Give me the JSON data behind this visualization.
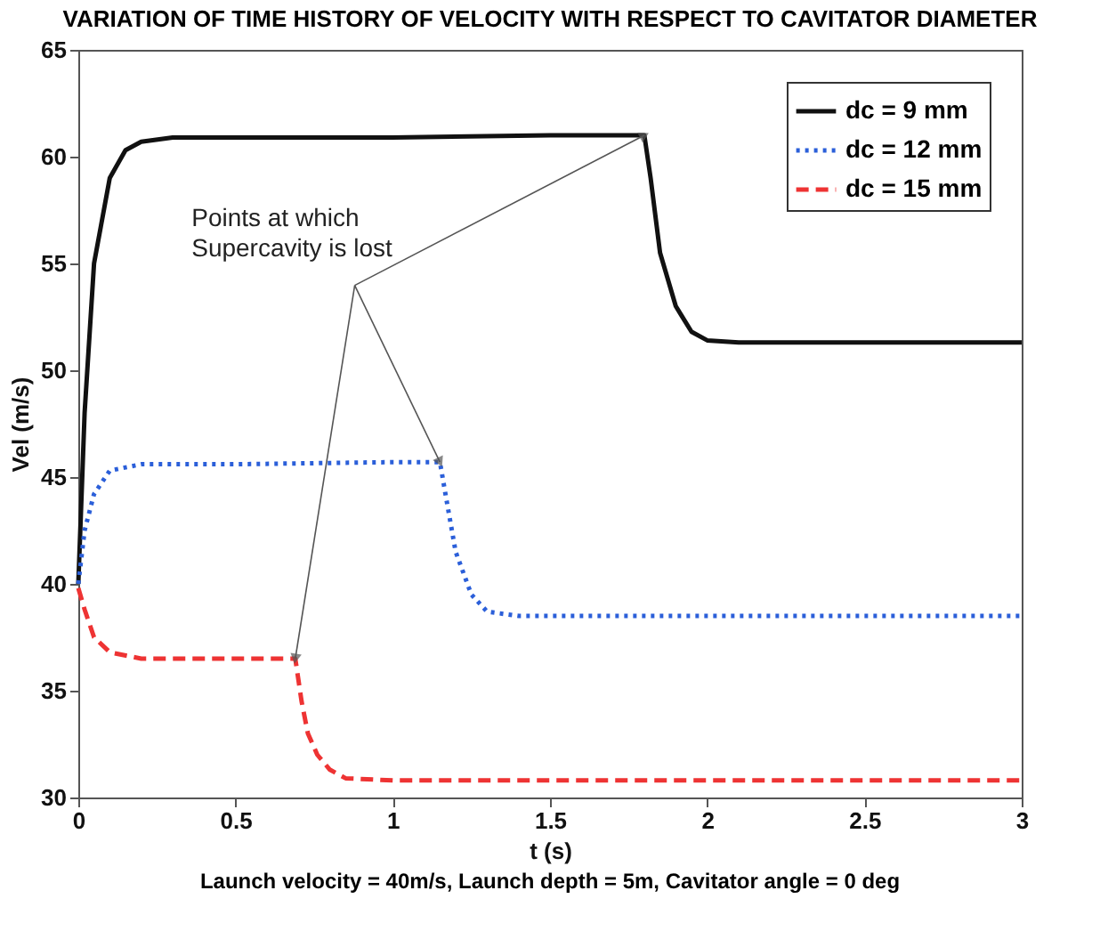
{
  "chart_data": {
    "type": "line",
    "title": "VARIATION OF TIME HISTORY OF VELOCITY WITH RESPECT TO CAVITATOR DIAMETER",
    "xlabel": "t (s)",
    "ylabel": "Vel (m/s)",
    "xlim": [
      0,
      3
    ],
    "ylim": [
      30,
      65
    ],
    "xticks": [
      0,
      0.5,
      1,
      1.5,
      2,
      2.5,
      3
    ],
    "yticks": [
      30,
      35,
      40,
      45,
      50,
      55,
      60,
      65
    ],
    "grid": false,
    "legend": "top right",
    "series": [
      {
        "name": "dc = 9 mm",
        "color": "#111111",
        "line_style": "solid",
        "x": [
          0,
          0.02,
          0.05,
          0.1,
          0.15,
          0.2,
          0.3,
          0.5,
          1.0,
          1.5,
          1.8,
          1.82,
          1.85,
          1.9,
          1.95,
          2.0,
          2.1,
          2.5,
          3.0
        ],
        "values": [
          40,
          48,
          55,
          59,
          60.3,
          60.7,
          60.9,
          60.9,
          60.9,
          61.0,
          61.0,
          59,
          55.5,
          53,
          51.8,
          51.4,
          51.3,
          51.3,
          51.3
        ]
      },
      {
        "name": "dc = 12 mm",
        "color": "#2b5fd9",
        "line_style": "dotted",
        "x": [
          0,
          0.02,
          0.05,
          0.1,
          0.2,
          0.5,
          1.0,
          1.15,
          1.17,
          1.2,
          1.25,
          1.3,
          1.4,
          2.0,
          3.0
        ],
        "values": [
          40,
          42.5,
          44.2,
          45.3,
          45.6,
          45.6,
          45.7,
          45.7,
          44,
          41.5,
          39.5,
          38.7,
          38.5,
          38.5,
          38.5
        ]
      },
      {
        "name": "dc = 15 mm",
        "color": "#ee3333",
        "line_style": "dashed",
        "x": [
          0,
          0.02,
          0.05,
          0.1,
          0.2,
          0.5,
          0.69,
          0.71,
          0.73,
          0.76,
          0.8,
          0.85,
          1.0,
          2.0,
          3.0
        ],
        "values": [
          39.8,
          38.8,
          37.5,
          36.8,
          36.5,
          36.5,
          36.5,
          34.5,
          33,
          32,
          31.3,
          30.9,
          30.8,
          30.8,
          30.8
        ]
      }
    ],
    "annotations": [
      {
        "text": "Points at which\nSupercavity is lost",
        "x": 1.8,
        "y": 61.0
      },
      "Launch velocity = 40m/s, Launch depth = 5m, Cavitator angle = 0 deg"
    ]
  }
}
